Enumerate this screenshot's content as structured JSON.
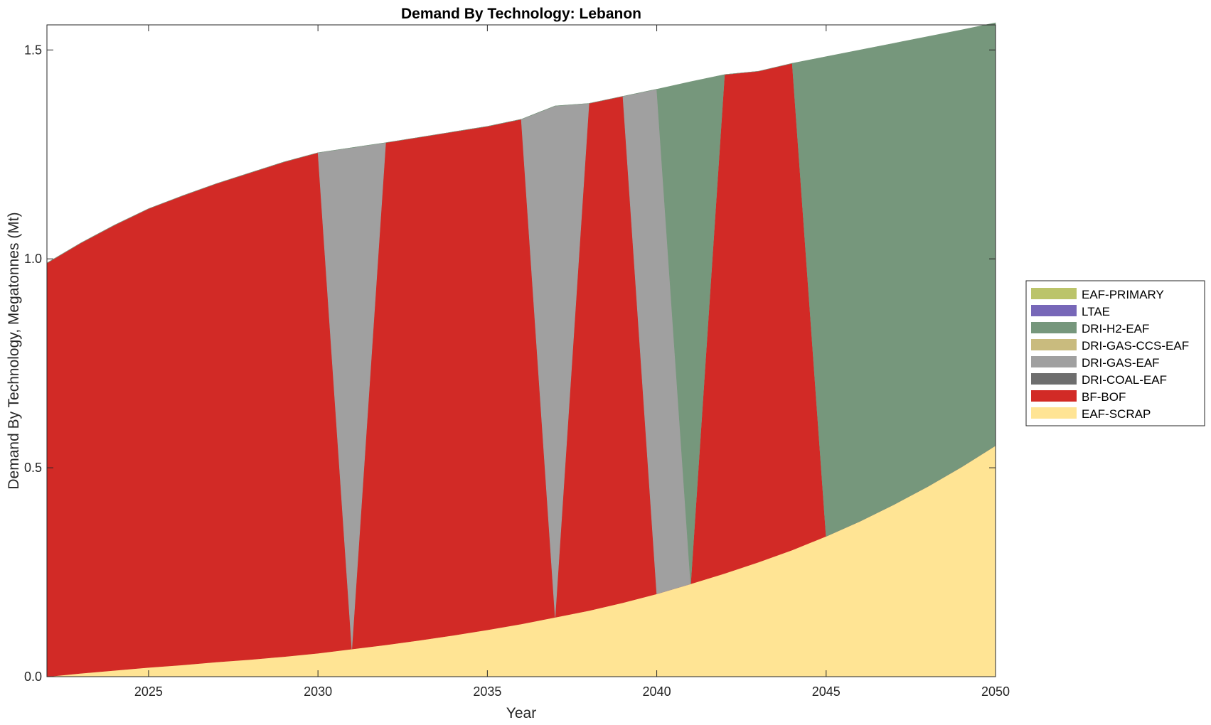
{
  "chart_data": {
    "type": "area",
    "title": "Demand By Technology: Lebanon",
    "xlabel": "Year",
    "ylabel": "Demand By Technology, Megatonnes (Mt)",
    "xlim": [
      2022,
      2050
    ],
    "ylim": [
      0,
      1.56
    ],
    "xticks": [
      2025,
      2030,
      2035,
      2040,
      2045,
      2050
    ],
    "xtick_labels": [
      "2025",
      "2030",
      "2035",
      "2040",
      "2045",
      "2050"
    ],
    "yticks": [
      0,
      0.5,
      1.0,
      1.5
    ],
    "ytick_labels": [
      "0.0",
      "0.5",
      "1.0",
      "1.5"
    ],
    "grid": false,
    "legend_position": "right",
    "x": [
      2022,
      2023,
      2024,
      2025,
      2026,
      2027,
      2028,
      2029,
      2030,
      2031,
      2032,
      2033,
      2034,
      2035,
      2036,
      2037,
      2038,
      2039,
      2040,
      2041,
      2042,
      2043,
      2044,
      2045,
      2046,
      2047,
      2048,
      2049,
      2050
    ],
    "series": [
      {
        "name": "EAF-SCRAP",
        "color": "#FFE494",
        "values": [
          0.0,
          0.008,
          0.015,
          0.022,
          0.028,
          0.035,
          0.041,
          0.048,
          0.056,
          0.066,
          0.076,
          0.087,
          0.099,
          0.112,
          0.126,
          0.142,
          0.158,
          0.177,
          0.198,
          0.222,
          0.247,
          0.274,
          0.303,
          0.336,
          0.372,
          0.412,
          0.455,
          0.502,
          0.553
        ]
      },
      {
        "name": "BF-BOF",
        "color": "#D22A26",
        "values": [
          0.99,
          1.03,
          1.066,
          1.098,
          1.123,
          1.145,
          1.165,
          1.184,
          1.198,
          0.0,
          1.202,
          1.204,
          1.205,
          1.205,
          1.208,
          0.0,
          1.214,
          1.212,
          0.0,
          0.0,
          1.194,
          1.175,
          1.165,
          0.0,
          0.0,
          0.0,
          0.0,
          0.0,
          0.0
        ]
      },
      {
        "name": "DRI-COAL-EAF",
        "color": "#6E6E6E",
        "values": [
          0,
          0,
          0,
          0,
          0,
          0,
          0,
          0,
          0,
          0,
          0,
          0,
          0,
          0,
          0,
          0,
          0,
          0,
          0,
          0,
          0,
          0,
          0,
          0,
          0,
          0,
          0,
          0,
          0
        ]
      },
      {
        "name": "DRI-GAS-EAF",
        "color": "#A0A0A0",
        "values": [
          0,
          0,
          0,
          0,
          0,
          0,
          0,
          0,
          0,
          1.2,
          0,
          0,
          0,
          0,
          0,
          1.224,
          0,
          0,
          1.208,
          0,
          0,
          0,
          0,
          0,
          0,
          0,
          0,
          0,
          0
        ]
      },
      {
        "name": "DRI-GAS-CCS-EAF",
        "color": "#C9BB7E",
        "values": [
          0,
          0,
          0,
          0,
          0,
          0,
          0,
          0,
          0,
          0,
          0,
          0,
          0,
          0,
          0,
          0,
          0,
          0,
          0,
          0,
          0,
          0,
          0,
          0,
          0,
          0,
          0,
          0,
          0
        ]
      },
      {
        "name": "DRI-H2-EAF",
        "color": "#76977C",
        "values": [
          0,
          0,
          0,
          0,
          0,
          0,
          0,
          0,
          0,
          0,
          0,
          0,
          0,
          0,
          0,
          0,
          0,
          0,
          0,
          1.202,
          0,
          0,
          0,
          1.148,
          1.128,
          1.104,
          1.077,
          1.046,
          1.012
        ]
      },
      {
        "name": "LTAE",
        "color": "#7767B8",
        "values": [
          0,
          0,
          0,
          0,
          0,
          0,
          0,
          0,
          0,
          0,
          0,
          0,
          0,
          0,
          0,
          0,
          0,
          0,
          0,
          0,
          0,
          0,
          0,
          0,
          0,
          0,
          0,
          0,
          0
        ]
      },
      {
        "name": "EAF-PRIMARY",
        "color": "#BBC46A",
        "values": [
          0,
          0,
          0,
          0,
          0,
          0,
          0,
          0,
          0,
          0,
          0,
          0,
          0,
          0,
          0,
          0,
          0,
          0,
          0,
          0,
          0,
          0,
          0,
          0,
          0,
          0,
          0,
          0,
          0
        ]
      }
    ],
    "legend_order": [
      "EAF-PRIMARY",
      "LTAE",
      "DRI-H2-EAF",
      "DRI-GAS-CCS-EAF",
      "DRI-GAS-EAF",
      "DRI-COAL-EAF",
      "BF-BOF",
      "EAF-SCRAP"
    ]
  }
}
